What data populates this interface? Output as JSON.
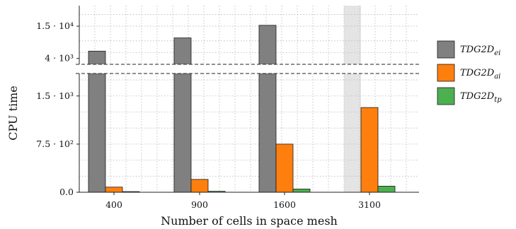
{
  "chart_data": {
    "type": "bar",
    "title": "",
    "xlabel": "Number of cells in space mesh",
    "ylabel": "CPU time",
    "categories": [
      "400",
      "900",
      "1600",
      "3100"
    ],
    "broken_axis": {
      "upper_panel": {
        "ylim": [
          2000,
          22000
        ],
        "ticks": [
          {
            "value": 4000,
            "label": "4 · 10³"
          },
          {
            "value": 15000,
            "label": "1.5 · 10⁴"
          }
        ]
      },
      "lower_panel": {
        "ylim": [
          0,
          1850
        ],
        "ticks": [
          {
            "value": 0,
            "label": "0.0"
          },
          {
            "value": 750,
            "label": "7.5 · 10²"
          },
          {
            "value": 1500,
            "label": "1.5 · 10³"
          }
        ]
      }
    },
    "highlighted_category": "3100",
    "grid": true,
    "legend_position": "right",
    "series": [
      {
        "name": "TDG2D",
        "subscript": "ei",
        "color": "#808080",
        "values": [
          6500,
          11000,
          15300,
          null
        ]
      },
      {
        "name": "TDG2D",
        "subscript": "ai",
        "color": "#ff7f0e",
        "values": [
          80,
          200,
          750,
          1320
        ]
      },
      {
        "name": "TDG2D",
        "subscript": "tp",
        "color": "#4caf50",
        "values": [
          10,
          15,
          50,
          95
        ]
      }
    ]
  }
}
